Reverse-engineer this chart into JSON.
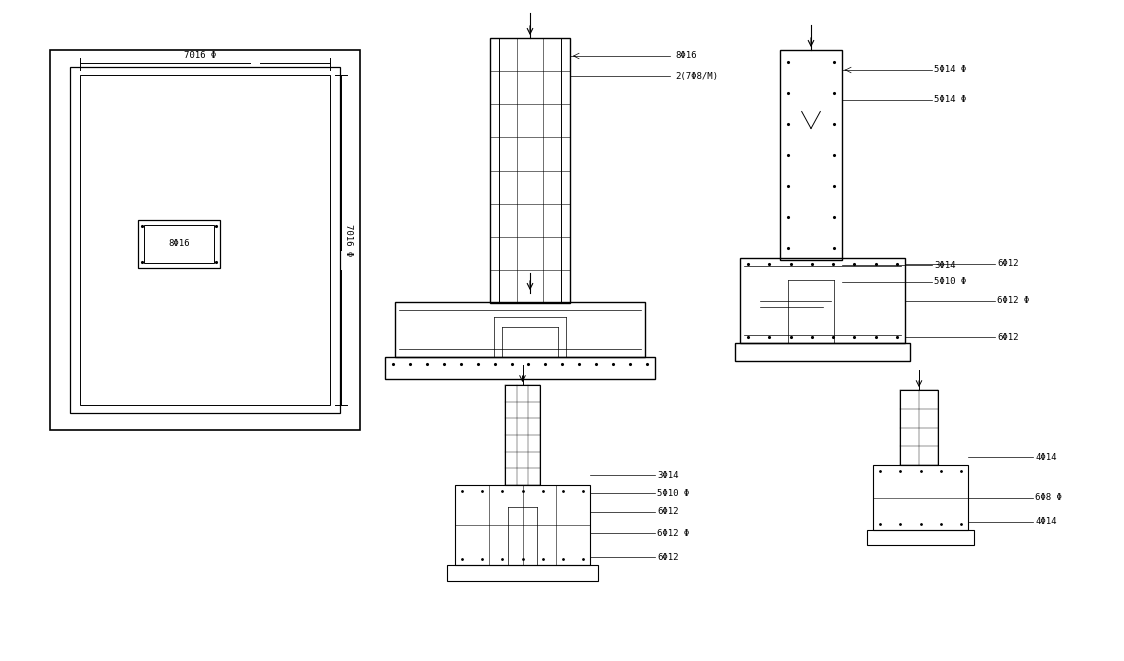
{
  "bg_color": "#ffffff",
  "line_color": "#000000",
  "font_size": 6.5,
  "labels": {
    "dim_h": "7016 Φ",
    "dim_v": "7016 Φ",
    "col_plan": "8Φ16",
    "fe_top": "8Φ16",
    "fe_stir": "2(7Φ8/M)",
    "se_l1": "5Φ14 Φ",
    "se_l2": "5Φ14 Φ",
    "se_l3": "3Φ14",
    "se_l4": "5Φ10 Φ",
    "se_l5": "6Φ12",
    "se_l6": "6Φ12 Φ",
    "se_l7": "6Φ12",
    "sf_l1": "3Φ14",
    "sf_l2": "5Φ10 Φ",
    "sf_l3": "6Φ12",
    "sf_l4": "6Φ12 Φ",
    "sf_l5": "6Φ12",
    "ss_l1": "4Φ14",
    "ss_l2": "6Φ8 Φ",
    "ss_l3": "4Φ14"
  }
}
